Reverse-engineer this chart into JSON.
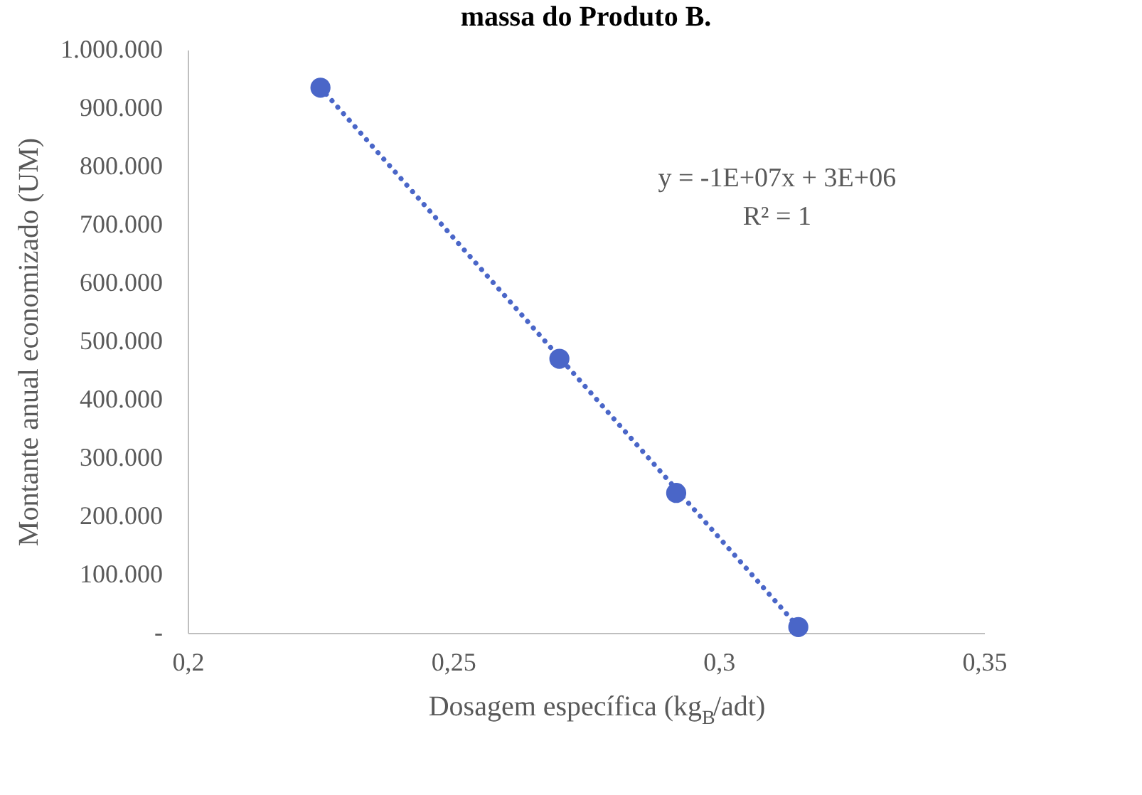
{
  "chart_data": {
    "type": "scatter",
    "title": "massa do Produto B.",
    "xlabel": "Dosagem específica (kg$_{B}$/adt)",
    "ylabel": "Montante anual economizado (UM)",
    "xlim": [
      0.2,
      0.35
    ],
    "xticks": [
      {
        "value": 0.2,
        "label": "0,2"
      },
      {
        "value": 0.25,
        "label": "0,25"
      },
      {
        "value": 0.3,
        "label": "0,3"
      },
      {
        "value": 0.35,
        "label": "0,35"
      }
    ],
    "ylim": [
      0,
      1000000
    ],
    "yticks": [
      {
        "value": 0,
        "label": "-"
      },
      {
        "value": 100000,
        "label": "100.000"
      },
      {
        "value": 200000,
        "label": "200.000"
      },
      {
        "value": 300000,
        "label": "300.000"
      },
      {
        "value": 400000,
        "label": "400.000"
      },
      {
        "value": 500000,
        "label": "500.000"
      },
      {
        "value": 600000,
        "label": "600.000"
      },
      {
        "value": 700000,
        "label": "700.000"
      },
      {
        "value": 800000,
        "label": "800.000"
      },
      {
        "value": 900000,
        "label": "900.000"
      },
      {
        "value": 1000000,
        "label": "1.000.000"
      }
    ],
    "grid": false,
    "series": [
      {
        "type": "line",
        "line_style": "dotted",
        "marker": "none",
        "color": "#4a66c8",
        "x": [
          0.225,
          0.315
        ],
        "values": [
          935000,
          10000
        ]
      },
      {
        "type": "scatter",
        "marker": "circle",
        "color": "#4a66c8",
        "x": [
          0.225,
          0.27,
          0.292,
          0.315
        ],
        "values": [
          935000,
          470000,
          240000,
          10000
        ]
      }
    ],
    "annotations": [
      "y = -1E+07x + 3E+06",
      "R² = 1"
    ]
  }
}
